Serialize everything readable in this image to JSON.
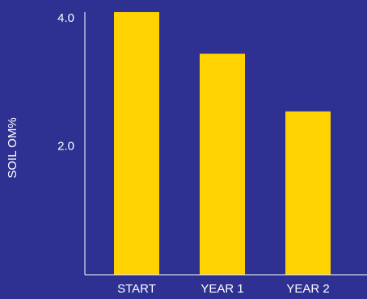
{
  "chart_data": {
    "type": "bar",
    "y_label": "SOIL OM%",
    "categories": [
      "START",
      "YEAR 1",
      "YEAR 2"
    ],
    "values": [
      4.1,
      3.45,
      2.55
    ],
    "color": "#ffd200",
    "ylim": [
      0,
      4.1
    ],
    "yticks": [
      {
        "value": 2,
        "label": "2.0"
      },
      {
        "value": 4,
        "label": "4.0"
      }
    ]
  }
}
